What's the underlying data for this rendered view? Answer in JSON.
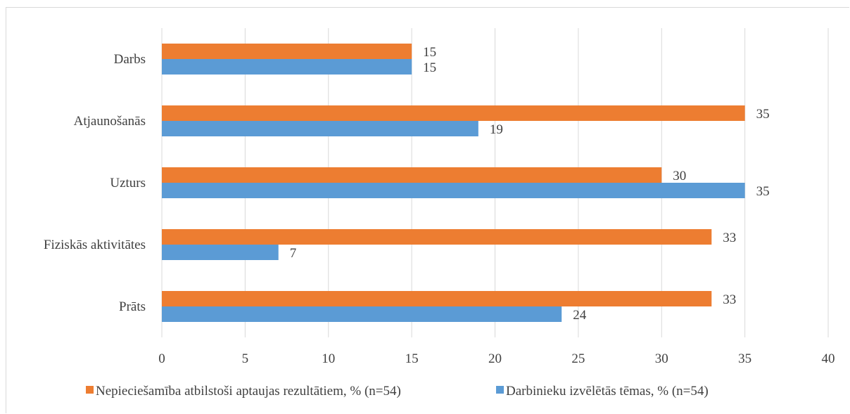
{
  "chart_data": {
    "type": "bar",
    "orientation": "horizontal",
    "categories": [
      "Darbs",
      "Atjaunošanās",
      "Uzturs",
      "Fiziskās aktivitātes",
      "Prāts"
    ],
    "series": [
      {
        "name": "Nepieciešamība atbilstoši aptaujas rezultātiem, % (n=54)",
        "color": "#ed7d31",
        "values": [
          15,
          35,
          30,
          33,
          33
        ]
      },
      {
        "name": "Darbinieku izvēlētās tēmas, % (n=54)",
        "color": "#5b9bd5",
        "values": [
          15,
          19,
          35,
          7,
          24
        ]
      }
    ],
    "xlim": [
      0,
      40
    ],
    "xticks": [
      0,
      5,
      10,
      15,
      20,
      25,
      30,
      35,
      40
    ],
    "grid": true,
    "legend_position": "bottom",
    "data_labels": true
  }
}
